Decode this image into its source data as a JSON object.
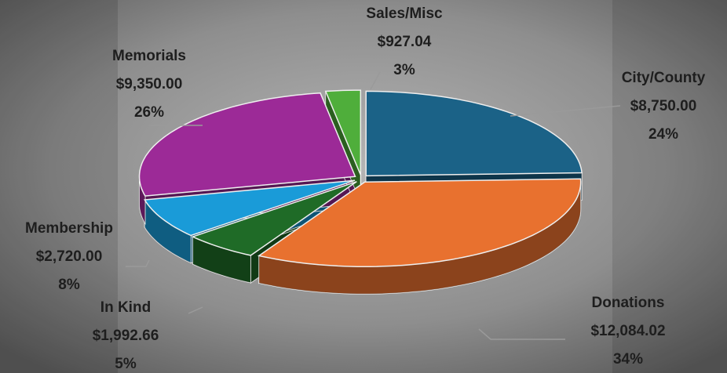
{
  "chart_data": {
    "type": "pie3d",
    "categories": [
      "City/County",
      "Donations",
      "In Kind",
      "Membership",
      "Memorials",
      "Sales/Misc"
    ],
    "values": [
      8750.0,
      12084.02,
      1992.66,
      2720.0,
      9350.0,
      927.04
    ],
    "value_labels": [
      "$8,750.00",
      "$12,084.02",
      "$1,992.66",
      "$2,720.00",
      "$9,350.00",
      "$927.04"
    ],
    "percents": [
      24,
      34,
      5,
      8,
      26,
      3
    ],
    "percent_labels": [
      "24%",
      "34%",
      "5%",
      "8%",
      "26%",
      "3%"
    ],
    "colors": [
      "#1b6287",
      "#e8712f",
      "#1f6b27",
      "#1a9bd8",
      "#9c2a97",
      "#4fae3b"
    ]
  }
}
